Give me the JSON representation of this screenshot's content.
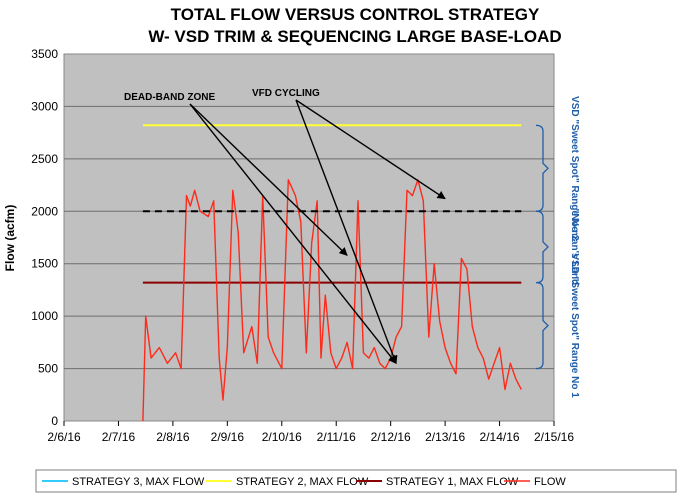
{
  "chart_data": {
    "type": "line",
    "title": "TOTAL FLOW VERSUS CONTROL STRATEGY",
    "subtitle": "W- VSD TRIM & SEQUENCING LARGE BASE-LOAD",
    "ylabel": "Flow (acfm)",
    "xlabel": "",
    "ylim": [
      0,
      3500
    ],
    "xlim": [
      0,
      9
    ],
    "y_ticks": [
      0,
      500,
      1000,
      1500,
      2000,
      2500,
      3000,
      3500
    ],
    "x_tick_labels": [
      "2/6/16",
      "2/7/16",
      "2/8/16",
      "2/9/16",
      "2/10/16",
      "2/11/16",
      "2/12/16",
      "2/13/16",
      "2/14/16",
      "2/15/16"
    ],
    "grid": "horizontal",
    "background_color": "#c0c0c0",
    "series": [
      {
        "name": "STRATEGY 3, MAX FLOW",
        "color": "#33ccff",
        "style": "solid",
        "x": [],
        "y": []
      },
      {
        "name": "STRATEGY 2, MAX FLOW",
        "color": "#ffff33",
        "style": "solid",
        "x": [
          1.45,
          8.4
        ],
        "y": [
          2820,
          2820
        ]
      },
      {
        "name": "STRATEGY 1, MAX FLOW",
        "color": "#8b0000",
        "style": "solid",
        "x": [
          1.45,
          8.4
        ],
        "y": [
          1320,
          1320
        ]
      },
      {
        "name": "FLOW",
        "color": "#ff2a1a",
        "style": "solid",
        "x": [
          1.45,
          1.5,
          1.6,
          1.75,
          1.9,
          2.05,
          2.15,
          2.25,
          2.32,
          2.4,
          2.5,
          2.65,
          2.75,
          2.85,
          2.92,
          3.0,
          3.1,
          3.2,
          3.3,
          3.45,
          3.55,
          3.65,
          3.75,
          3.85,
          4.0,
          4.12,
          4.25,
          4.35,
          4.45,
          4.55,
          4.65,
          4.72,
          4.8,
          4.9,
          5.0,
          5.1,
          5.2,
          5.3,
          5.4,
          5.5,
          5.6,
          5.7,
          5.8,
          5.9,
          6.0,
          6.1,
          6.2,
          6.3,
          6.4,
          6.5,
          6.6,
          6.7,
          6.8,
          6.9,
          7.0,
          7.1,
          7.2,
          7.3,
          7.4,
          7.5,
          7.6,
          7.7,
          7.8,
          7.9,
          8.0,
          8.1,
          8.2,
          8.3,
          8.4
        ],
        "y": [
          0,
          1000,
          600,
          700,
          550,
          650,
          500,
          2150,
          2050,
          2200,
          2000,
          1950,
          2100,
          600,
          200,
          700,
          2200,
          1800,
          650,
          900,
          550,
          2150,
          800,
          650,
          500,
          2300,
          2150,
          1900,
          650,
          1700,
          2100,
          600,
          1200,
          650,
          500,
          600,
          750,
          500,
          2100,
          650,
          600,
          700,
          550,
          500,
          600,
          800,
          900,
          2200,
          2150,
          2300,
          2100,
          800,
          1500,
          950,
          700,
          550,
          450,
          1550,
          1450,
          900,
          700,
          600,
          400,
          550,
          700,
          300,
          550,
          400,
          300
        ]
      },
      {
        "name": "Dead-band (no legend)",
        "color": "#000000",
        "style": "dashed",
        "x": [
          1.45,
          8.4
        ],
        "y": [
          2000,
          2000
        ]
      }
    ],
    "annotations": [
      {
        "text": "DEAD-BAND ZONE",
        "points_to": [
          {
            "x": 5.2,
            "y": 1580
          },
          {
            "x": 6.1,
            "y": 550
          }
        ]
      },
      {
        "text": "VFD CYCLING",
        "points_to": [
          {
            "x": 7.0,
            "y": 2120
          },
          {
            "x": 6.1,
            "y": 550
          }
        ]
      }
    ],
    "zones": [
      {
        "label": "VSD \"Sweet Spot\" Range No 2",
        "from": 2000,
        "to": 2820
      },
      {
        "label": "\"No-man's Land",
        "from": 1320,
        "to": 2000
      },
      {
        "label": "VSD \"Sweet Spot\" Range No 1",
        "from": 500,
        "to": 1320
      }
    ],
    "legend": {
      "position": "bottom",
      "entries": [
        "STRATEGY 3, MAX FLOW",
        "STRATEGY 2, MAX FLOW",
        "STRATEGY 1, MAX FLOW",
        "FLOW"
      ]
    }
  }
}
